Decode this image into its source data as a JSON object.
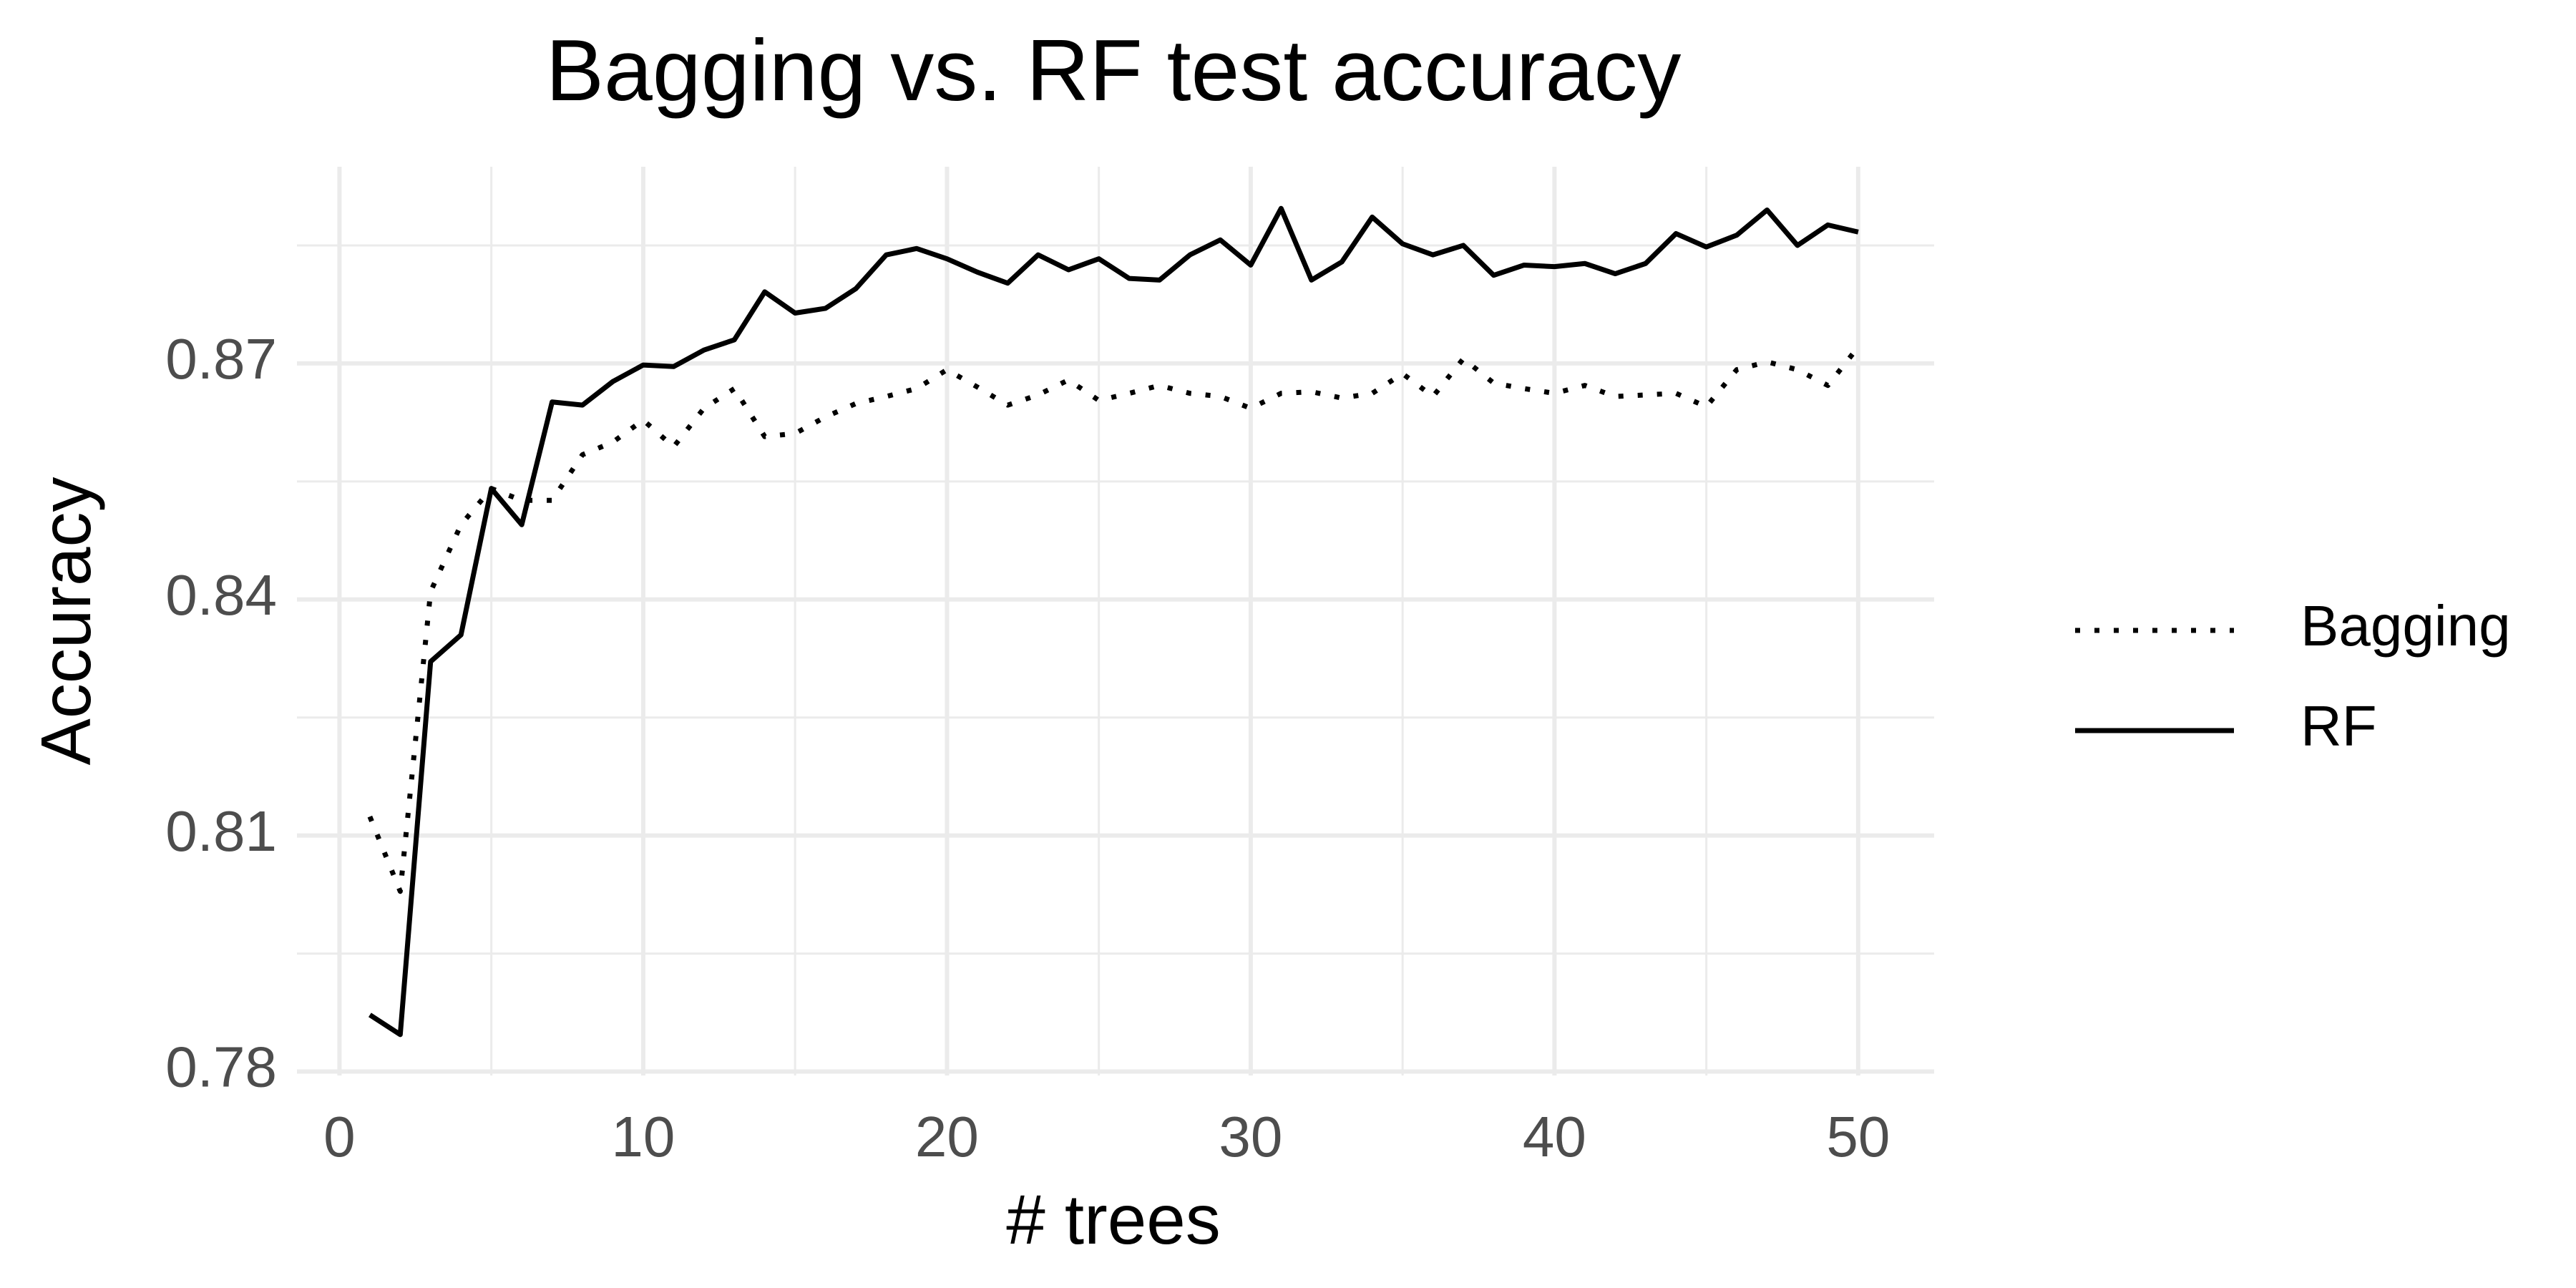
{
  "chart_data": {
    "type": "line",
    "title": "Bagging vs. RF test accuracy",
    "x_label": "# trees",
    "y_label": "Accuracy",
    "x": [
      1,
      2,
      3,
      4,
      5,
      6,
      7,
      8,
      9,
      10,
      11,
      12,
      13,
      14,
      15,
      16,
      17,
      18,
      19,
      20,
      21,
      22,
      23,
      24,
      25,
      26,
      27,
      28,
      29,
      30,
      31,
      32,
      33,
      34,
      35,
      36,
      37,
      38,
      39,
      40,
      41,
      42,
      43,
      44,
      45,
      46,
      47,
      48,
      49,
      50
    ],
    "series": [
      {
        "name": "Bagging",
        "color": "#000000",
        "dash": "dotted",
        "values": [
          0.8124,
          0.8029,
          0.841,
          0.8495,
          0.8541,
          0.8526,
          0.8526,
          0.8584,
          0.86,
          0.8628,
          0.8594,
          0.8643,
          0.8668,
          0.8607,
          0.8611,
          0.8632,
          0.8649,
          0.8658,
          0.8668,
          0.8692,
          0.867,
          0.8647,
          0.866,
          0.8679,
          0.8653,
          0.8662,
          0.8672,
          0.8662,
          0.8658,
          0.8643,
          0.8662,
          0.8664,
          0.8656,
          0.8662,
          0.8687,
          0.8658,
          0.8706,
          0.8675,
          0.8668,
          0.8662,
          0.8672,
          0.8658,
          0.866,
          0.8662,
          0.8645,
          0.8692,
          0.8702,
          0.8692,
          0.8672,
          0.8721
        ]
      },
      {
        "name": "RF",
        "color": "#000000",
        "dash": "solid",
        "values": [
          0.7872,
          0.7847,
          0.8321,
          0.8355,
          0.8541,
          0.8495,
          0.8651,
          0.8647,
          0.8677,
          0.8698,
          0.8696,
          0.8717,
          0.873,
          0.8791,
          0.8764,
          0.877,
          0.8795,
          0.8838,
          0.8846,
          0.8833,
          0.8816,
          0.8802,
          0.8838,
          0.8819,
          0.8833,
          0.8808,
          0.8806,
          0.8838,
          0.8857,
          0.8825,
          0.8897,
          0.8806,
          0.8829,
          0.8886,
          0.8852,
          0.8838,
          0.885,
          0.8812,
          0.8825,
          0.8823,
          0.8827,
          0.8814,
          0.8827,
          0.8865,
          0.8848,
          0.8863,
          0.8895,
          0.885,
          0.8876,
          0.8867
        ]
      }
    ],
    "xlim": [
      -1.4,
      52.5
    ],
    "ylim": [
      0.7795,
      0.895
    ],
    "xticks": [
      0,
      10,
      20,
      30,
      40,
      50
    ],
    "yticks": [
      0.78,
      0.81,
      0.84,
      0.87
    ],
    "minor_xticks": [
      5,
      15,
      25,
      35,
      45
    ],
    "minor_yticks": [
      0.795,
      0.825,
      0.855,
      0.885
    ],
    "grid": true,
    "legend": "right"
  }
}
